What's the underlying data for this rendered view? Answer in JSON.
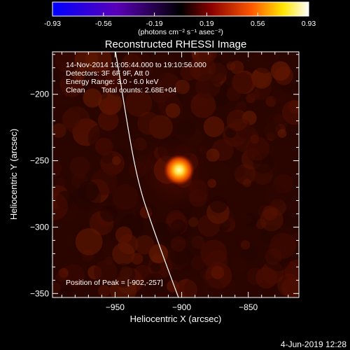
{
  "colorbar": {
    "ticks": [
      "-0.93",
      "-0.56",
      "-0.19",
      "0.19",
      "0.56",
      "0.93"
    ],
    "tick_values": [
      -0.93,
      -0.56,
      -0.19,
      0.19,
      0.56,
      0.93
    ],
    "range": [
      -0.93,
      0.93
    ],
    "colors": [
      "#0000ff",
      "#5a00b8",
      "#000000",
      "#8a0000",
      "#ff5a00",
      "#ffe600",
      "#ffffff"
    ],
    "units_label": "(photons cm⁻² s⁻¹ asec⁻²)"
  },
  "plot": {
    "title": "Reconstructed RHESSI Image",
    "xlabel": "Heliocentric X (arcsec)",
    "ylabel": "Heliocentric Y (arcsec)",
    "xlim": [
      -997,
      -812
    ],
    "ylim": [
      -353,
      -168
    ],
    "xticks": [
      -950,
      -900,
      -850
    ],
    "xtick_labels": [
      "−950",
      "−900",
      "−850"
    ],
    "yticks": [
      -200,
      -250,
      -300,
      -350
    ],
    "ytick_labels": [
      "−200",
      "−250",
      "−300",
      "−350"
    ],
    "annotations": {
      "time_range": "14-Nov-2014 19:05:44.000 to 19:10:56.000",
      "detectors": "Detectors: 3F 6F 9F, Att 0",
      "energy": "Energy Range: 3.0 - 6.0 keV",
      "clean": "Clean",
      "counts": "Total counts: 2.68E+04",
      "peak": "Position of Peak = [-902,-257]"
    },
    "peak": {
      "x": -902,
      "y": -257
    },
    "limb_color": "#ffffff"
  },
  "footer": {
    "date": "4-Jun-2019 12:28"
  }
}
